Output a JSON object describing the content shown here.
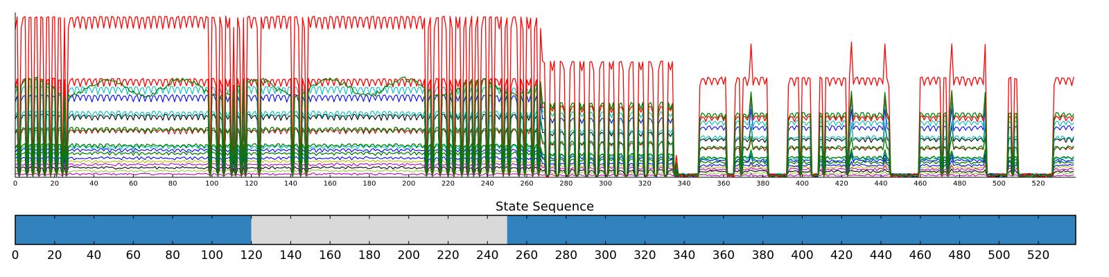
{
  "chart_data": [
    {
      "type": "line",
      "title": "",
      "xlabel": "",
      "ylabel": "",
      "xlim": [
        0,
        539
      ],
      "xticks": [
        0,
        20,
        40,
        60,
        80,
        100,
        120,
        140,
        160,
        180,
        200,
        220,
        240,
        260,
        280,
        300,
        320,
        340,
        360,
        380,
        400,
        420,
        440,
        460,
        480,
        500,
        520
      ],
      "yticks_shown": false,
      "grid": false,
      "legend": "none",
      "series_note_colors": [
        "#ff0000",
        "#00bfbf",
        "#0000ff",
        "#000000",
        "#008000",
        "#bf0000",
        "#bf00bf",
        "#bfbf00",
        "#9acd32",
        "#8b4513"
      ],
      "levels_relative": [
        {
          "color": "#ff0000",
          "value": 0.98
        },
        {
          "color": "#ff0000",
          "value": 0.6
        },
        {
          "color": "#00bfbf",
          "value": 0.55
        },
        {
          "color": "#0000ff",
          "value": 0.5
        },
        {
          "color": "#00bfbf",
          "value": 0.4
        },
        {
          "color": "#000000",
          "value": 0.38
        },
        {
          "color": "#008000",
          "value": 0.3
        },
        {
          "color": "#bf0000",
          "value": 0.29
        },
        {
          "color": "#008000",
          "value": 0.2
        },
        {
          "color": "#00bfbf",
          "value": 0.19
        },
        {
          "color": "#0000ff",
          "value": 0.17
        },
        {
          "color": "#008000",
          "value": 0.15
        },
        {
          "color": "#0000ff",
          "value": 0.12
        },
        {
          "color": "#bfbf00",
          "value": 0.1
        },
        {
          "color": "#bf00bf",
          "value": 0.08
        },
        {
          "color": "#000000",
          "value": 0.06
        },
        {
          "color": "#9acd32",
          "value": 0.04
        },
        {
          "color": "#bf00bf",
          "value": 0.02
        }
      ],
      "green_peak_series": {
        "color": "#008000",
        "value": 0.63
      }
    },
    {
      "type": "heatmap",
      "title": "State Sequence",
      "xlim": [
        0,
        539
      ],
      "xticks": [
        0,
        20,
        40,
        60,
        80,
        100,
        120,
        140,
        160,
        180,
        200,
        220,
        240,
        260,
        280,
        300,
        320,
        340,
        360,
        380,
        400,
        420,
        440,
        460,
        480,
        500,
        520
      ],
      "segments": [
        {
          "start": 0,
          "end": 120,
          "color": "#3182bd"
        },
        {
          "start": 120,
          "end": 250,
          "color": "#d9d9d9"
        },
        {
          "start": 250,
          "end": 539,
          "color": "#3182bd"
        }
      ]
    }
  ]
}
